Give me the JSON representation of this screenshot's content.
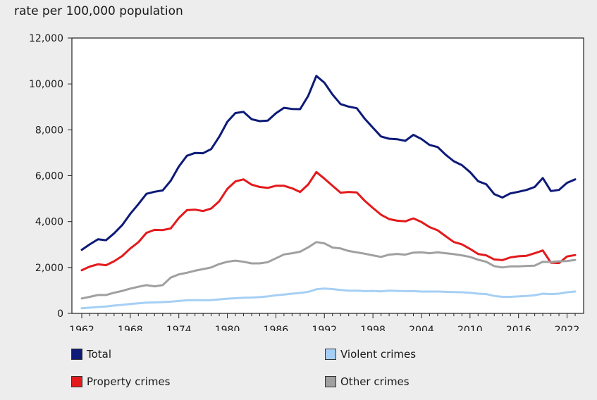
{
  "chart_data": {
    "type": "line",
    "ylabel": "rate per 100,000 population",
    "xlabel": "",
    "title": "",
    "ylim": [
      0,
      12000
    ],
    "yticks": [
      0,
      2000,
      4000,
      6000,
      8000,
      10000,
      12000
    ],
    "ytick_labels": [
      "0",
      "2,000",
      "4,000",
      "6,000",
      "8,000",
      "10,000",
      "12,000"
    ],
    "xlim": [
      1962,
      2023
    ],
    "xticks": [
      1962,
      1968,
      1974,
      1980,
      1986,
      1992,
      1998,
      2004,
      2010,
      2016,
      2022
    ],
    "xtick_labels": [
      "1962",
      "1968",
      "1974",
      "1980",
      "1986",
      "1992",
      "1998",
      "2004",
      "2010",
      "2016",
      "2022"
    ],
    "grid": false,
    "legend_position": "bottom",
    "x": [
      1962,
      1963,
      1964,
      1965,
      1966,
      1967,
      1968,
      1969,
      1970,
      1971,
      1972,
      1973,
      1974,
      1975,
      1976,
      1977,
      1978,
      1979,
      1980,
      1981,
      1982,
      1983,
      1984,
      1985,
      1986,
      1987,
      1988,
      1989,
      1990,
      1991,
      1992,
      1993,
      1994,
      1995,
      1996,
      1997,
      1998,
      1999,
      2000,
      2001,
      2002,
      2003,
      2004,
      2005,
      2006,
      2007,
      2008,
      2009,
      2010,
      2011,
      2012,
      2013,
      2014,
      2015,
      2016,
      2017,
      2018,
      2019,
      2020,
      2021,
      2022,
      2023
    ],
    "series": [
      {
        "name": "Total",
        "color": "#0d1a78",
        "values": [
          2770,
          3010,
          3230,
          3190,
          3490,
          3850,
          4340,
          4760,
          5210,
          5300,
          5360,
          5780,
          6400,
          6870,
          6990,
          6980,
          7160,
          7700,
          8350,
          8730,
          8780,
          8460,
          8380,
          8400,
          8720,
          8960,
          8910,
          8900,
          9480,
          10350,
          10050,
          9540,
          9120,
          9010,
          8940,
          8480,
          8090,
          7710,
          7610,
          7590,
          7520,
          7780,
          7600,
          7340,
          7250,
          6910,
          6630,
          6460,
          6160,
          5760,
          5630,
          5200,
          5050,
          5230,
          5300,
          5380,
          5510,
          5900,
          5330,
          5380,
          5690,
          5840
        ]
      },
      {
        "name": "Property crimes",
        "color": "#e31a1c",
        "values": [
          1880,
          2040,
          2140,
          2100,
          2270,
          2500,
          2830,
          3100,
          3510,
          3640,
          3630,
          3700,
          4160,
          4500,
          4520,
          4460,
          4570,
          4890,
          5430,
          5750,
          5840,
          5610,
          5510,
          5470,
          5560,
          5560,
          5450,
          5290,
          5620,
          6160,
          5870,
          5560,
          5260,
          5290,
          5270,
          4900,
          4590,
          4300,
          4110,
          4040,
          4010,
          4140,
          3980,
          3760,
          3620,
          3360,
          3110,
          3010,
          2810,
          2590,
          2530,
          2350,
          2320,
          2440,
          2490,
          2510,
          2620,
          2740,
          2210,
          2190,
          2480,
          2540
        ]
      },
      {
        "name": "Other crimes",
        "color": "#a0a0a0",
        "values": [
          650,
          720,
          800,
          800,
          900,
          980,
          1080,
          1160,
          1230,
          1180,
          1230,
          1560,
          1700,
          1770,
          1860,
          1930,
          2000,
          2150,
          2250,
          2300,
          2250,
          2180,
          2180,
          2230,
          2400,
          2570,
          2620,
          2690,
          2880,
          3110,
          3050,
          2870,
          2830,
          2720,
          2660,
          2600,
          2530,
          2460,
          2560,
          2590,
          2560,
          2650,
          2660,
          2620,
          2660,
          2620,
          2580,
          2530,
          2460,
          2340,
          2250,
          2060,
          2000,
          2050,
          2050,
          2070,
          2080,
          2250,
          2240,
          2270,
          2280,
          2330
        ]
      },
      {
        "name": "Violent crimes",
        "color": "#a6cff5",
        "values": [
          220,
          250,
          280,
          300,
          340,
          370,
          410,
          440,
          470,
          480,
          490,
          510,
          540,
          570,
          580,
          570,
          580,
          610,
          640,
          660,
          680,
          690,
          710,
          740,
          790,
          820,
          860,
          890,
          940,
          1050,
          1080,
          1060,
          1020,
          990,
          990,
          970,
          980,
          960,
          990,
          980,
          970,
          970,
          950,
          950,
          950,
          940,
          930,
          920,
          900,
          860,
          840,
          760,
          720,
          720,
          740,
          760,
          790,
          860,
          840,
          860,
          920,
          950
        ]
      }
    ]
  },
  "legend": {
    "items": [
      {
        "name": "Total",
        "color": "#0d1a78"
      },
      {
        "name": "Violent crimes",
        "color": "#a6cff5"
      },
      {
        "name": "Property crimes",
        "color": "#e31a1c"
      },
      {
        "name": "Other crimes",
        "color": "#a0a0a0"
      }
    ]
  }
}
